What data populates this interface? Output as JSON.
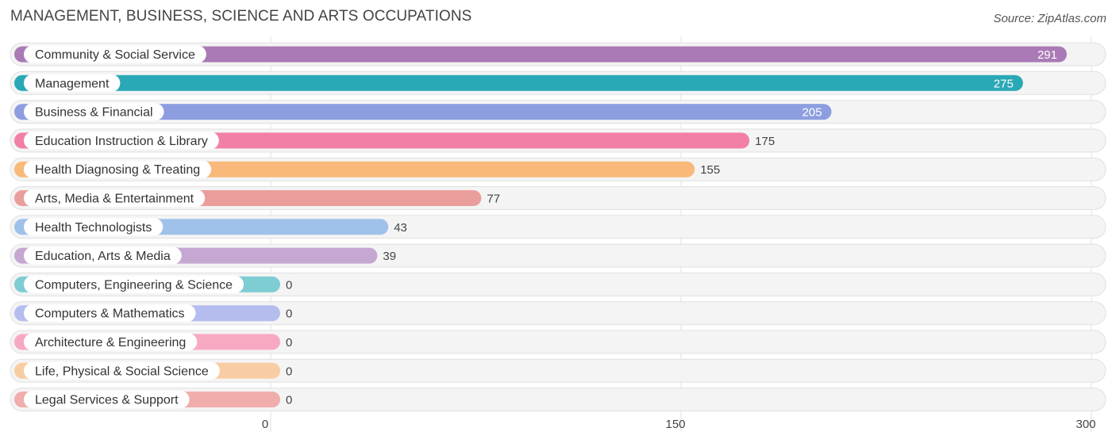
{
  "header": {
    "title": "MANAGEMENT, BUSINESS, SCIENCE AND ARTS OCCUPATIONS",
    "source": "Source: ZipAtlas.com"
  },
  "chart_data": {
    "type": "bar",
    "orientation": "horizontal",
    "title": "MANAGEMENT, BUSINESS, SCIENCE AND ARTS OCCUPATIONS",
    "xlabel": "",
    "ylabel": "",
    "xlim": [
      0,
      300
    ],
    "ticks": [
      0,
      150,
      300
    ],
    "grid": true,
    "categories": [
      "Community & Social Service",
      "Management",
      "Business & Financial",
      "Education Instruction & Library",
      "Health Diagnosing & Treating",
      "Arts, Media & Entertainment",
      "Health Technologists",
      "Education, Arts & Media",
      "Computers, Engineering & Science",
      "Computers & Mathematics",
      "Architecture & Engineering",
      "Life, Physical & Social Science",
      "Legal Services & Support"
    ],
    "values": [
      291,
      275,
      205,
      175,
      155,
      77,
      43,
      39,
      0,
      0,
      0,
      0,
      0
    ],
    "colors": [
      "#a97ab5",
      "#2aa8b6",
      "#8d9ee0",
      "#f27fa5",
      "#f9b97a",
      "#ea9e9c",
      "#9fc1ea",
      "#c6a7d2",
      "#7ecdd3",
      "#b4bdee",
      "#f7a9c2",
      "#f9cda3",
      "#f0adab"
    ]
  }
}
